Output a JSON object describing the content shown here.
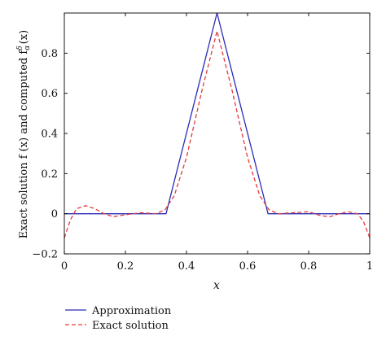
{
  "chart_data": {
    "type": "line",
    "title": "",
    "xlabel": "x",
    "ylabel_prefix": "Exact solution f (x) and computed f",
    "ylabel_sub": "α",
    "ylabel_sup": "δ",
    "ylabel_suffix": "(x)",
    "xlim": [
      0,
      1
    ],
    "ylim": [
      -0.2,
      1.0
    ],
    "xticks": [
      0,
      0.2,
      0.4,
      0.6,
      0.8,
      1
    ],
    "xtick_labels": [
      "0",
      "0.2",
      "0.4",
      "0.6",
      "0.8",
      "1"
    ],
    "yticks": [
      -0.2,
      0,
      0.2,
      0.4,
      0.6,
      0.8
    ],
    "ytick_labels": [
      "−0.2",
      "0",
      "0.2",
      "0.4",
      "0.6",
      "0.8"
    ],
    "grid": false,
    "legend_position": "below-left",
    "series": [
      {
        "name": "Approximation",
        "color": "#2b2bb8",
        "style": "solid",
        "x": [
          0,
          0.333,
          0.5,
          0.667,
          1
        ],
        "y": [
          0,
          0,
          1.0,
          0,
          0
        ]
      },
      {
        "name": "Exact solution",
        "color": "#e23b3b",
        "style": "dashed",
        "x": [
          0,
          0.02,
          0.04,
          0.07,
          0.1,
          0.13,
          0.16,
          0.2,
          0.25,
          0.3,
          0.33,
          0.36,
          0.4,
          0.45,
          0.5,
          0.55,
          0.6,
          0.64,
          0.67,
          0.7,
          0.75,
          0.8,
          0.84,
          0.87,
          0.9,
          0.93,
          0.96,
          0.98,
          1.0
        ],
        "y": [
          -0.12,
          -0.03,
          0.025,
          0.04,
          0.025,
          0.0,
          -0.015,
          -0.005,
          0.005,
          0.0,
          0.02,
          0.09,
          0.28,
          0.61,
          0.91,
          0.61,
          0.28,
          0.09,
          0.02,
          0.0,
          0.005,
          0.01,
          -0.01,
          -0.015,
          0.0,
          0.01,
          0.0,
          -0.04,
          -0.12
        ]
      }
    ]
  }
}
